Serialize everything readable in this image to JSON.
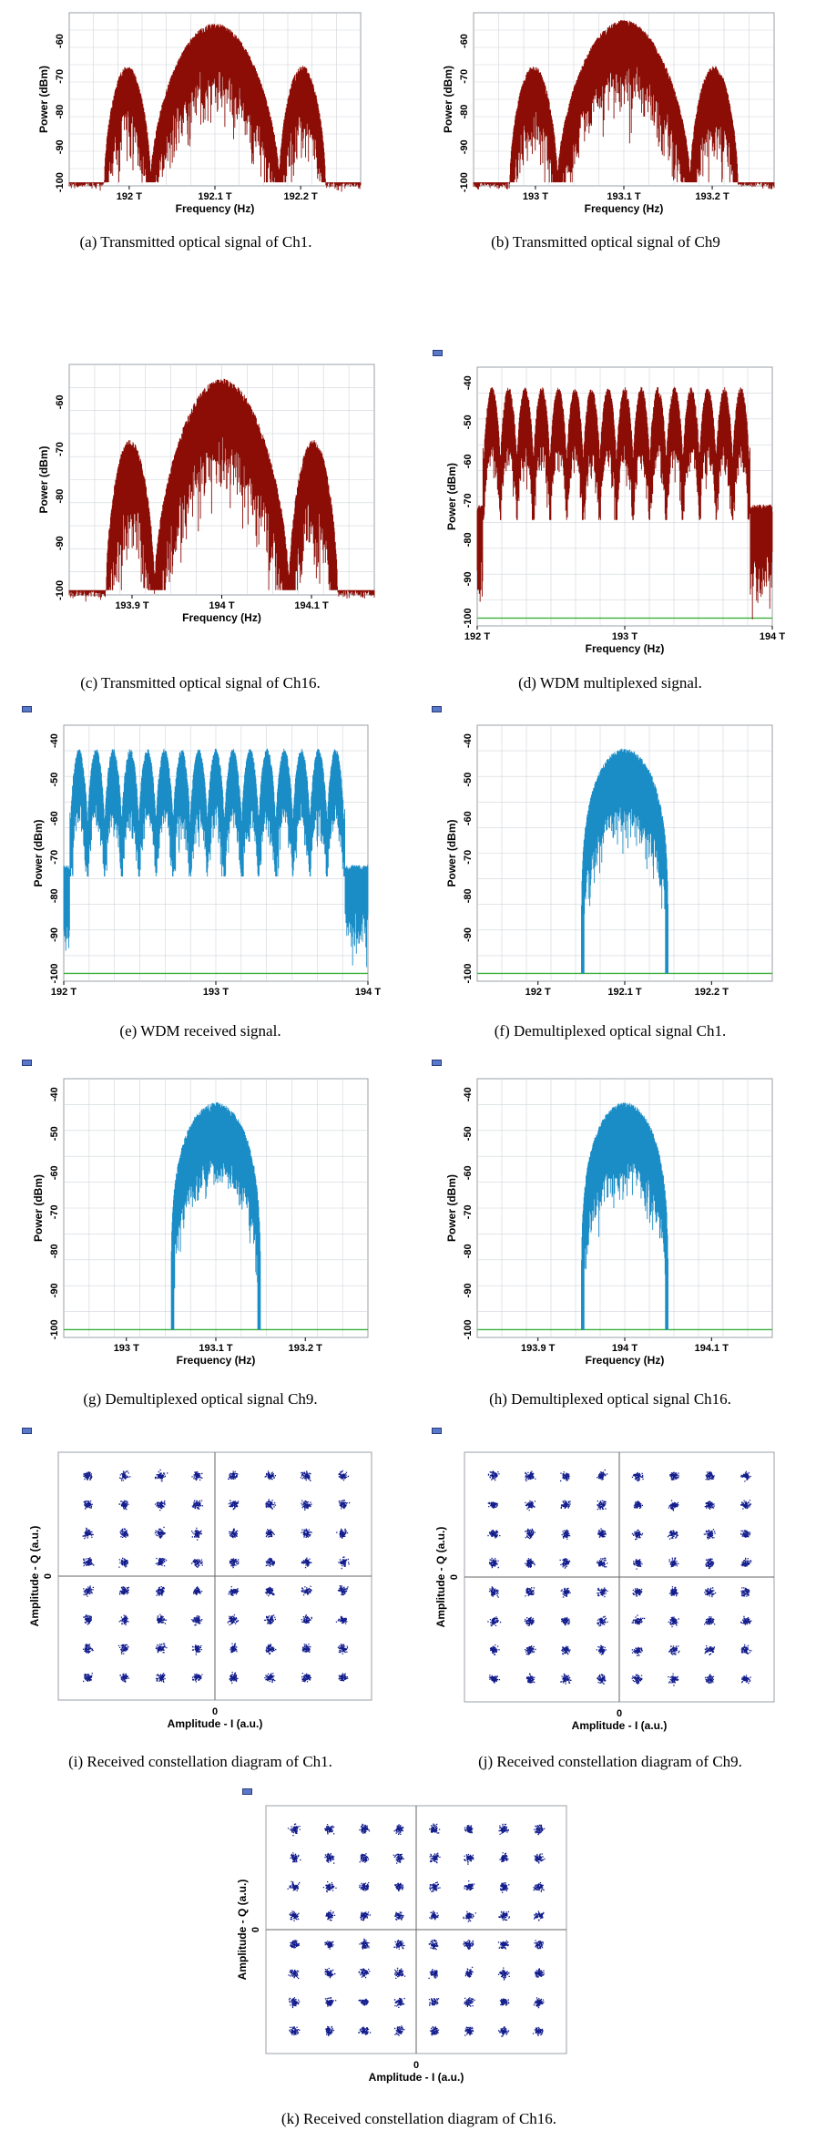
{
  "colors": {
    "spectrum_red": "#8b0d06",
    "spectrum_blue": "#1a8cc6",
    "constellation_blue": "#121c8c",
    "noise_floor_green": "#3ab13a",
    "grid": "#cfd4da"
  },
  "icons": [
    "window-icon"
  ],
  "chart_data": [
    {
      "id": "a",
      "type": "line",
      "mode": "tx",
      "caption": "(a) Transmitted optical signal of Ch1.",
      "xlabel": "Frequency (Hz)",
      "ylabel": "Power (dBm)",
      "xlim": [
        191.93,
        192.27
      ],
      "ylim": [
        -101,
        -52
      ],
      "xticks": [
        192.0,
        192.1,
        192.2
      ],
      "xtick_labels": [
        "192 T",
        "192.1 T",
        "192.2 T"
      ],
      "yticks": [
        -60,
        -70,
        -80,
        -90,
        -100
      ],
      "ytick_labels": [
        "-60",
        "-70",
        "-80",
        "-90",
        "-100"
      ],
      "series": [
        {
          "center": 192.1,
          "peak_dBm": -55,
          "side_peak_dBm": -67,
          "null_offset": 0.075,
          "floor_dBm": -100
        }
      ]
    },
    {
      "id": "b",
      "type": "line",
      "mode": "tx",
      "caption": "(b) Transmitted optical signal of Ch9",
      "xlabel": "Frequency (Hz)",
      "ylabel": "Power (dBm)",
      "xlim": [
        192.93,
        193.27
      ],
      "ylim": [
        -101,
        -52
      ],
      "xticks": [
        193.0,
        193.1,
        193.2
      ],
      "xtick_labels": [
        "193 T",
        "193.1 T",
        "193.2 T"
      ],
      "yticks": [
        -60,
        -70,
        -80,
        -90,
        -100
      ],
      "ytick_labels": [
        "-60",
        "-70",
        "-80",
        "-90",
        "-100"
      ],
      "series": [
        {
          "center": 193.1,
          "peak_dBm": -54,
          "side_peak_dBm": -67,
          "null_offset": 0.075,
          "floor_dBm": -100
        }
      ]
    },
    {
      "id": "c",
      "type": "line",
      "mode": "tx",
      "caption": "(c) Transmitted optical signal of Ch16.",
      "xlabel": "Frequency (Hz)",
      "ylabel": "Power (dBm)",
      "xlim": [
        193.83,
        194.17
      ],
      "ylim": [
        -101,
        -52
      ],
      "xticks": [
        193.9,
        194.0,
        194.1
      ],
      "xtick_labels": [
        "193.9 T",
        "194 T",
        "194.1 T"
      ],
      "yticks": [
        -60,
        -70,
        -80,
        -90,
        -100
      ],
      "ytick_labels": [
        "-60",
        "-70",
        "-80",
        "-90",
        "-100"
      ],
      "series": [
        {
          "center": 194.0,
          "peak_dBm": -55,
          "side_peak_dBm": -68,
          "null_offset": 0.075,
          "floor_dBm": -100
        }
      ]
    },
    {
      "id": "d",
      "type": "line",
      "mode": "wdm",
      "color": "red",
      "caption": "(d) WDM multiplexed signal.",
      "xlabel": "Frequency (Hz)",
      "ylabel": "Power (dBm)",
      "xlim": [
        192.0,
        194.0
      ],
      "ylim": [
        -102,
        -36
      ],
      "xticks": [
        192.0,
        193.0,
        194.0
      ],
      "xtick_labels": [
        "192 T",
        "193 T",
        "194 T"
      ],
      "yticks": [
        -40,
        -50,
        -60,
        -70,
        -80,
        -90,
        -100
      ],
      "ytick_labels": [
        "-40",
        "-50",
        "-60",
        "-70",
        "-80",
        "-90",
        "-100"
      ],
      "series": [
        {
          "first_center": 192.1,
          "spacing": 0.1125,
          "channels": 16,
          "peak_dBm": -41,
          "valley_dBm": -62,
          "edge_dBm": -71,
          "floor_dBm": -100
        }
      ]
    },
    {
      "id": "e",
      "type": "line",
      "mode": "wdm",
      "color": "blue",
      "caption": "(e) WDM received signal.",
      "xlabel": "",
      "ylabel": "Power (dBm)",
      "xlim": [
        192.0,
        194.0
      ],
      "ylim": [
        -102,
        -36
      ],
      "xticks": [
        192.0,
        193.0,
        194.0
      ],
      "xtick_labels": [
        "192 T",
        "193 T",
        "194 T"
      ],
      "yticks": [
        -40,
        -50,
        -60,
        -70,
        -80,
        -90,
        -100
      ],
      "ytick_labels": [
        "-40",
        "-50",
        "-60",
        "-70",
        "-80",
        "-90",
        "-100"
      ],
      "series": [
        {
          "first_center": 192.1,
          "spacing": 0.1125,
          "channels": 16,
          "peak_dBm": -42,
          "valley_dBm": -63,
          "edge_dBm": -72,
          "floor_dBm": -100
        }
      ]
    },
    {
      "id": "f",
      "type": "line",
      "mode": "demux",
      "caption": "(f) Demultiplexed optical signal Ch1.",
      "xlabel": "",
      "ylabel": "Power (dBm)",
      "xlim": [
        191.93,
        192.27
      ],
      "ylim": [
        -102,
        -36
      ],
      "xticks": [
        192.0,
        192.1,
        192.2
      ],
      "xtick_labels": [
        "192 T",
        "192.1 T",
        "192.2 T"
      ],
      "yticks": [
        -40,
        -50,
        -60,
        -70,
        -80,
        -90,
        -100
      ],
      "ytick_labels": [
        "-40",
        "-50",
        "-60",
        "-70",
        "-80",
        "-90",
        "-100"
      ],
      "series": [
        {
          "center": 192.1,
          "peak_dBm": -42,
          "half_width": 0.05,
          "floor_dBm": -100
        }
      ]
    },
    {
      "id": "g",
      "type": "line",
      "mode": "demux",
      "caption": "(g) Demultiplexed optical signal Ch9.",
      "xlabel": "Frequency (Hz)",
      "ylabel": "Power (dBm)",
      "xlim": [
        192.93,
        193.27
      ],
      "ylim": [
        -102,
        -36
      ],
      "xticks": [
        193.0,
        193.1,
        193.2
      ],
      "xtick_labels": [
        "193 T",
        "193.1 T",
        "193.2 T"
      ],
      "yticks": [
        -40,
        -50,
        -60,
        -70,
        -80,
        -90,
        -100
      ],
      "ytick_labels": [
        "-40",
        "-50",
        "-60",
        "-70",
        "-80",
        "-90",
        "-100"
      ],
      "series": [
        {
          "center": 193.1,
          "peak_dBm": -42,
          "half_width": 0.05,
          "floor_dBm": -100
        }
      ]
    },
    {
      "id": "h",
      "type": "line",
      "mode": "demux",
      "caption": "(h) Demultiplexed optical signal Ch16.",
      "xlabel": "Frequency (Hz)",
      "ylabel": "Power (dBm)",
      "xlim": [
        193.83,
        194.17
      ],
      "ylim": [
        -102,
        -36
      ],
      "xticks": [
        193.9,
        194.0,
        194.1
      ],
      "xtick_labels": [
        "193.9 T",
        "194 T",
        "194.1 T"
      ],
      "yticks": [
        -40,
        -50,
        -60,
        -70,
        -80,
        -90,
        -100
      ],
      "ytick_labels": [
        "-40",
        "-50",
        "-60",
        "-70",
        "-80",
        "-90",
        "-100"
      ],
      "series": [
        {
          "center": 194.0,
          "peak_dBm": -42,
          "half_width": 0.05,
          "floor_dBm": -100
        }
      ]
    },
    {
      "id": "i",
      "type": "scatter",
      "mode": "constellation",
      "caption": "(i) Received constellation diagram of Ch1.",
      "xlabel": "Amplitude - I (a.u.)",
      "ylabel": "Amplitude - Q (a.u.)",
      "xtick_labels": [
        "0"
      ],
      "ytick_labels": [
        "0"
      ],
      "series": [
        {
          "levels": [
            -7,
            -5,
            -3,
            -1,
            1,
            3,
            5,
            7
          ],
          "format": "64-QAM"
        }
      ]
    },
    {
      "id": "j",
      "type": "scatter",
      "mode": "constellation",
      "caption": "(j) Received constellation diagram of Ch9.",
      "xlabel": "Amplitude - I (a.u.)",
      "ylabel": "Amplitude - Q (a.u.)",
      "xtick_labels": [
        "0"
      ],
      "ytick_labels": [
        "0"
      ],
      "series": [
        {
          "levels": [
            -7,
            -5,
            -3,
            -1,
            1,
            3,
            5,
            7
          ],
          "format": "64-QAM"
        }
      ]
    },
    {
      "id": "k",
      "type": "scatter",
      "mode": "constellation",
      "caption": "(k) Received constellation diagram of Ch16.",
      "xlabel": "Amplitude - I (a.u.)",
      "ylabel": "Amplitude - Q (a.u.)",
      "xtick_labels": [
        "0"
      ],
      "ytick_labels": [
        "0"
      ],
      "series": [
        {
          "levels": [
            -7,
            -5,
            -3,
            -1,
            1,
            3,
            5,
            7
          ],
          "format": "64-QAM"
        }
      ]
    }
  ]
}
